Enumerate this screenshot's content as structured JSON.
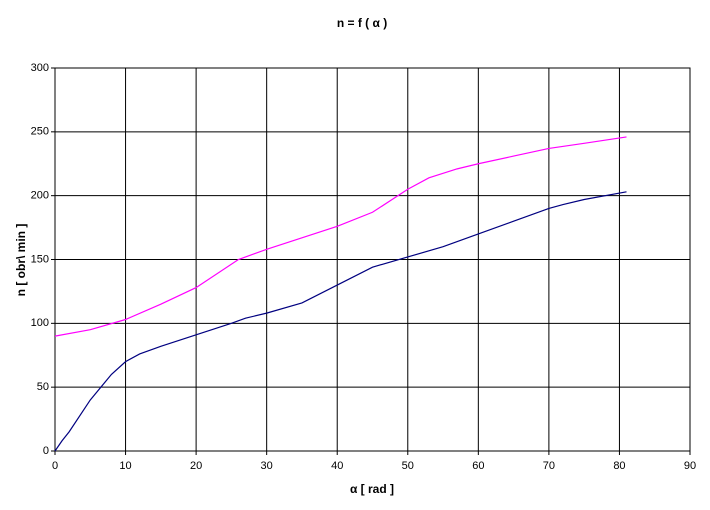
{
  "chart_data": {
    "type": "line",
    "title": "n = f ( α )",
    "x_label": "α [ rad ]",
    "y_label": "n [ obr\\ min ]",
    "series": [
      {
        "color": "#ff00ff",
        "x": [
          0,
          5,
          10,
          15,
          20,
          26,
          30,
          35,
          40,
          45,
          50,
          53,
          57,
          60,
          65,
          70,
          75,
          81
        ],
        "values": [
          90,
          95,
          103,
          115,
          128,
          150,
          158,
          167,
          176,
          187,
          205,
          214,
          221,
          225,
          231,
          237,
          241,
          246
        ]
      },
      {
        "color": "#000080",
        "x": [
          0,
          1,
          2,
          5,
          8,
          10,
          12,
          15,
          20,
          25,
          27,
          30,
          35,
          40,
          45,
          50,
          55,
          60,
          65,
          70,
          72,
          75,
          81
        ],
        "values": [
          0,
          8,
          15,
          40,
          60,
          70,
          76,
          82,
          91,
          100,
          104,
          108,
          116,
          130,
          144,
          152,
          160,
          170,
          180,
          190,
          193,
          197,
          203
        ]
      }
    ],
    "xlim": [
      0,
      90
    ],
    "xticks": [
      0,
      10,
      20,
      30,
      40,
      50,
      60,
      70,
      80,
      90
    ],
    "ylim": [
      0,
      300
    ],
    "yticks": [
      0,
      50,
      100,
      150,
      200,
      250,
      300
    ],
    "grid": true
  }
}
